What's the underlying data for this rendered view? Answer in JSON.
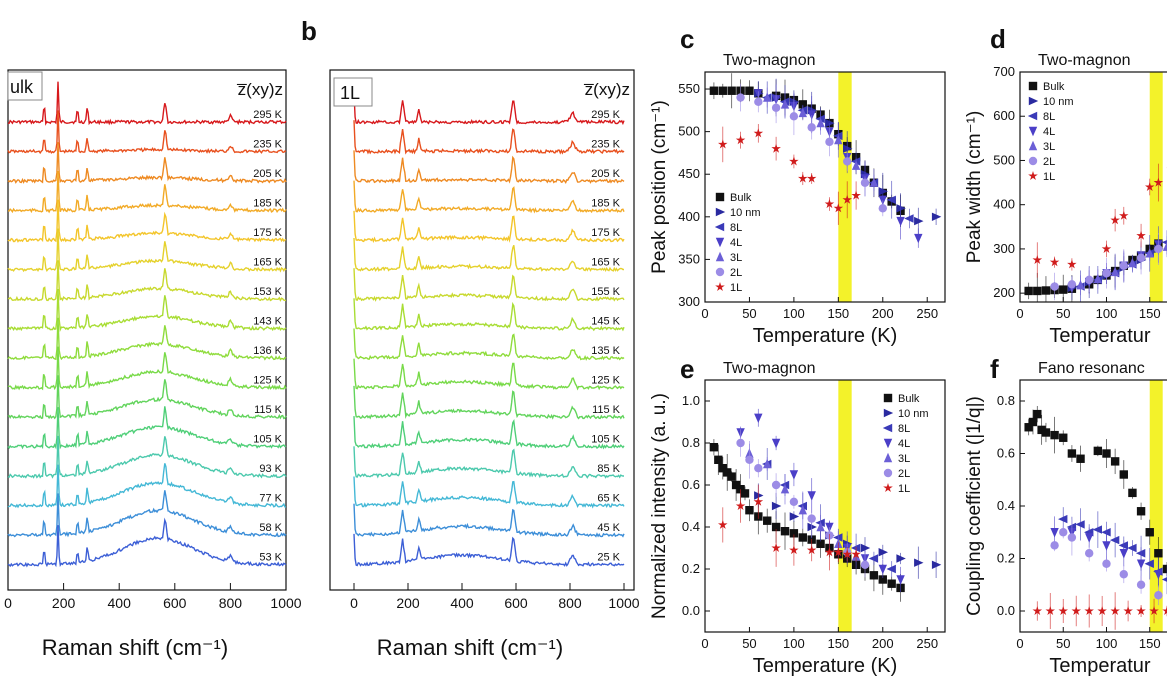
{
  "panels": {
    "a": {
      "letter": "",
      "tag": "ulk",
      "geometry": "z̅(xy)z",
      "temps": [
        "295 K",
        "235 K",
        "205 K",
        "185 K",
        "175 K",
        "165 K",
        "153 K",
        "143 K",
        "136 K",
        "125 K",
        "115 K",
        "105 K",
        "93 K",
        "77 K",
        "58 K",
        "53 K"
      ]
    },
    "b": {
      "letter": "b",
      "tag": "1L",
      "geometry": "z̅(xy)z",
      "temps": [
        "295 K",
        "235 K",
        "205 K",
        "185 K",
        "175 K",
        "165 K",
        "155 K",
        "145 K",
        "135 K",
        "125 K",
        "115 K",
        "105 K",
        "85 K",
        "65 K",
        "45 K",
        "25 K"
      ]
    }
  },
  "spectra_axes": {
    "xlabel": "Raman shift (cm⁻¹)",
    "xticks_a": [
      "0",
      "200",
      "400",
      "600",
      "800",
      "1000"
    ],
    "xticks_b": [
      "0",
      "200",
      "400",
      "600",
      "800",
      "1000"
    ]
  },
  "trace_colors": [
    "#d7191c",
    "#e8501e",
    "#ee8a22",
    "#f2aa26",
    "#f3c52a",
    "#e5d12c",
    "#c8d92e",
    "#a8dd34",
    "#8fdc3c",
    "#78da48",
    "#62d45c",
    "#4fcf78",
    "#4cc9ad",
    "#44b8d6",
    "#3c8ed8",
    "#3c5fd6"
  ],
  "chart_data": [
    {
      "panel": "c",
      "type": "scatter",
      "title": "Two-magnon",
      "xlabel": "Temperature (K)",
      "ylabel": "Peak position (cm⁻¹)",
      "xlim": [
        0,
        270
      ],
      "ylim": [
        300,
        570
      ],
      "xticks": [
        0,
        50,
        100,
        150,
        200,
        250
      ],
      "yticks": [
        300,
        350,
        400,
        450,
        500,
        550
      ],
      "highlight_x": [
        150,
        165
      ],
      "legend_position": "bottom-left",
      "series": [
        {
          "name": "Bulk",
          "marker": "square",
          "color": "#111111",
          "x": [
            10,
            20,
            30,
            40,
            50,
            60,
            80,
            90,
            100,
            110,
            120,
            130,
            140,
            150,
            160,
            170,
            180,
            190,
            200,
            210,
            220
          ],
          "y": [
            548,
            548,
            548,
            548,
            548,
            545,
            542,
            540,
            537,
            532,
            527,
            520,
            510,
            497,
            483,
            470,
            455,
            440,
            428,
            418,
            407
          ]
        },
        {
          "name": "10 nm",
          "marker": "tri-right",
          "color": "#2a2aa0",
          "x": [
            60,
            80,
            100,
            120,
            140,
            160,
            180,
            200,
            220,
            240,
            260
          ],
          "y": [
            545,
            540,
            535,
            525,
            510,
            480,
            450,
            430,
            410,
            395,
            400
          ]
        },
        {
          "name": "8L",
          "marker": "tri-left",
          "color": "#3a3ab8",
          "x": [
            70,
            90,
            110,
            130,
            150,
            170,
            190,
            210,
            230
          ],
          "y": [
            540,
            535,
            525,
            515,
            495,
            465,
            440,
            420,
            398
          ]
        },
        {
          "name": "4L",
          "marker": "tri-down",
          "color": "#4b3fc8",
          "x": [
            60,
            80,
            100,
            120,
            140,
            160,
            180,
            200,
            220,
            240
          ],
          "y": [
            545,
            538,
            530,
            520,
            500,
            470,
            445,
            420,
            395,
            375
          ]
        },
        {
          "name": "3L",
          "marker": "tri-up",
          "color": "#6b5fd6",
          "x": [
            70,
            90,
            110,
            130,
            150,
            170,
            190
          ],
          "y": [
            540,
            532,
            522,
            510,
            490,
            460,
            440
          ]
        },
        {
          "name": "2L",
          "marker": "circle",
          "color": "#9c8ce6",
          "x": [
            40,
            60,
            80,
            100,
            120,
            140,
            160,
            180,
            200
          ],
          "y": [
            540,
            535,
            528,
            518,
            505,
            488,
            465,
            440,
            410
          ]
        },
        {
          "name": "1L",
          "marker": "star",
          "color": "#d01c1c",
          "x": [
            20,
            40,
            60,
            80,
            100,
            110,
            120,
            140,
            150,
            160,
            170
          ],
          "y": [
            485,
            490,
            498,
            480,
            465,
            445,
            445,
            415,
            410,
            420,
            425
          ]
        }
      ]
    },
    {
      "panel": "d",
      "type": "scatter",
      "title": "Two-magnon",
      "xlabel": "Temperatur",
      "ylabel": "Peak width (cm⁻¹)",
      "xlim": [
        0,
        185
      ],
      "ylim": [
        180,
        700
      ],
      "xticks": [
        0,
        50,
        100,
        150
      ],
      "yticks": [
        200,
        300,
        400,
        500,
        600,
        700
      ],
      "highlight_x": [
        150,
        165
      ],
      "legend_position": "top-left",
      "series": [
        {
          "name": "Bulk",
          "marker": "square",
          "color": "#111111",
          "x": [
            10,
            20,
            30,
            40,
            50,
            60,
            80,
            90,
            100,
            110,
            120,
            130,
            140,
            150,
            160
          ],
          "y": [
            205,
            205,
            206,
            207,
            208,
            210,
            220,
            230,
            240,
            250,
            262,
            275,
            285,
            300,
            312
          ]
        },
        {
          "name": "10 nm",
          "marker": "tri-right",
          "color": "#2a2aa0",
          "x": [
            60,
            80,
            100,
            120,
            140,
            160,
            175
          ],
          "y": [
            212,
            225,
            240,
            258,
            275,
            300,
            320
          ]
        },
        {
          "name": "8L",
          "marker": "tri-left",
          "color": "#3a3ab8",
          "x": [
            70,
            90,
            110,
            130,
            150,
            170
          ],
          "y": [
            215,
            230,
            245,
            265,
            290,
            315
          ]
        },
        {
          "name": "4L",
          "marker": "tri-down",
          "color": "#4b3fc8",
          "x": [
            60,
            80,
            100,
            120,
            140,
            160,
            180
          ],
          "y": [
            212,
            225,
            245,
            262,
            285,
            310,
            335
          ]
        },
        {
          "name": "3L",
          "marker": "tri-up",
          "color": "#6b5fd6",
          "x": [
            70,
            90,
            110,
            130,
            150,
            170
          ],
          "y": [
            218,
            232,
            248,
            268,
            290,
            305
          ]
        },
        {
          "name": "2L",
          "marker": "circle",
          "color": "#9c8ce6",
          "x": [
            40,
            60,
            80,
            100,
            120,
            140,
            160,
            180
          ],
          "y": [
            215,
            220,
            230,
            245,
            262,
            280,
            300,
            320
          ]
        },
        {
          "name": "1L",
          "marker": "star",
          "color": "#d01c1c",
          "x": [
            20,
            40,
            60,
            100,
            110,
            120,
            140,
            150,
            160,
            175
          ],
          "y": [
            275,
            270,
            265,
            300,
            365,
            375,
            330,
            440,
            450,
            480
          ]
        }
      ]
    },
    {
      "panel": "e",
      "type": "scatter",
      "title": "Two-magnon",
      "xlabel": "Temperature (K)",
      "ylabel": "Normalized intensity (a. u.)",
      "xlim": [
        0,
        270
      ],
      "ylim": [
        -0.1,
        1.1
      ],
      "xticks": [
        0,
        50,
        100,
        150,
        200,
        250
      ],
      "yticks": [
        0.0,
        0.2,
        0.4,
        0.6,
        0.8,
        1.0
      ],
      "highlight_x": [
        150,
        165
      ],
      "legend_position": "top-right",
      "series": [
        {
          "name": "Bulk",
          "marker": "square",
          "color": "#111111",
          "x": [
            10,
            15,
            20,
            25,
            30,
            35,
            40,
            45,
            50,
            60,
            70,
            80,
            90,
            100,
            110,
            120,
            130,
            140,
            150,
            160,
            170,
            180,
            190,
            200,
            210,
            220
          ],
          "y": [
            0.78,
            0.72,
            0.68,
            0.66,
            0.64,
            0.6,
            0.58,
            0.56,
            0.48,
            0.45,
            0.43,
            0.4,
            0.38,
            0.37,
            0.35,
            0.34,
            0.32,
            0.3,
            0.27,
            0.25,
            0.22,
            0.2,
            0.17,
            0.15,
            0.13,
            0.11
          ]
        },
        {
          "name": "10 nm",
          "marker": "tri-right",
          "color": "#2a2aa0",
          "x": [
            60,
            80,
            100,
            120,
            140,
            160,
            180,
            200,
            220,
            240,
            260
          ],
          "y": [
            0.55,
            0.5,
            0.45,
            0.4,
            0.36,
            0.32,
            0.3,
            0.28,
            0.25,
            0.23,
            0.22
          ]
        },
        {
          "name": "8L",
          "marker": "tri-left",
          "color": "#3a3ab8",
          "x": [
            70,
            90,
            110,
            130,
            150,
            170,
            190,
            210
          ],
          "y": [
            0.7,
            0.6,
            0.5,
            0.42,
            0.35,
            0.3,
            0.25,
            0.2
          ]
        },
        {
          "name": "4L",
          "marker": "tri-down",
          "color": "#4b3fc8",
          "x": [
            40,
            60,
            80,
            100,
            120,
            140,
            160,
            180,
            200,
            220
          ],
          "y": [
            0.85,
            0.92,
            0.8,
            0.65,
            0.55,
            0.4,
            0.3,
            0.25,
            0.2,
            0.15
          ]
        },
        {
          "name": "3L",
          "marker": "tri-up",
          "color": "#6b5fd6",
          "x": [
            50,
            70,
            90,
            110,
            130,
            150,
            170
          ],
          "y": [
            0.75,
            0.7,
            0.58,
            0.48,
            0.4,
            0.32,
            0.26
          ]
        },
        {
          "name": "2L",
          "marker": "circle",
          "color": "#9c8ce6",
          "x": [
            40,
            50,
            60,
            80,
            100,
            120,
            140,
            160,
            180
          ],
          "y": [
            0.8,
            0.72,
            0.68,
            0.6,
            0.52,
            0.44,
            0.36,
            0.28,
            0.22
          ]
        },
        {
          "name": "1L",
          "marker": "star",
          "color": "#d01c1c",
          "x": [
            20,
            40,
            60,
            80,
            100,
            120,
            140,
            150,
            160,
            170
          ],
          "y": [
            0.41,
            0.5,
            0.52,
            0.3,
            0.29,
            0.29,
            0.28,
            0.28,
            0.27,
            0.27
          ]
        }
      ]
    },
    {
      "panel": "f",
      "type": "scatter",
      "title": "Fano resonanc",
      "xlabel": "Temperatur",
      "ylabel": "Coupling coefficient (|1/q|)",
      "xlim": [
        0,
        185
      ],
      "ylim": [
        -0.08,
        0.88
      ],
      "xticks": [
        0,
        50,
        100,
        150
      ],
      "yticks": [
        0.0,
        0.2,
        0.4,
        0.6,
        0.8
      ],
      "highlight_x": [
        150,
        165
      ],
      "legend_position": "none",
      "series": [
        {
          "name": "Bulk",
          "marker": "square",
          "color": "#111111",
          "x": [
            10,
            15,
            20,
            25,
            30,
            40,
            50,
            60,
            70,
            90,
            100,
            110,
            120,
            130,
            140,
            150,
            160,
            170,
            180
          ],
          "y": [
            0.7,
            0.72,
            0.75,
            0.69,
            0.68,
            0.67,
            0.66,
            0.6,
            0.58,
            0.61,
            0.6,
            0.57,
            0.52,
            0.45,
            0.38,
            0.3,
            0.22,
            0.16,
            0.15
          ]
        },
        {
          "name": "8L",
          "marker": "tri-left",
          "color": "#3a3ab8",
          "x": [
            50,
            60,
            70,
            80,
            90,
            100,
            110,
            120,
            130,
            140,
            150,
            160,
            170
          ],
          "y": [
            0.35,
            0.32,
            0.33,
            0.3,
            0.31,
            0.3,
            0.27,
            0.25,
            0.24,
            0.22,
            0.18,
            0.15,
            0.12
          ]
        },
        {
          "name": "4L",
          "marker": "tri-down",
          "color": "#4b3fc8",
          "x": [
            40,
            60,
            80,
            100,
            120,
            140,
            160,
            180
          ],
          "y": [
            0.3,
            0.3,
            0.28,
            0.25,
            0.22,
            0.18,
            0.14,
            0.1
          ]
        },
        {
          "name": "2L",
          "marker": "circle",
          "color": "#9c8ce6",
          "x": [
            40,
            50,
            60,
            80,
            100,
            120,
            140,
            160,
            180
          ],
          "y": [
            0.25,
            0.3,
            0.28,
            0.22,
            0.18,
            0.14,
            0.1,
            0.06,
            0.04
          ]
        },
        {
          "name": "1L",
          "marker": "star",
          "color": "#d01c1c",
          "x": [
            20,
            35,
            50,
            65,
            80,
            95,
            110,
            125,
            140,
            155,
            170,
            180
          ],
          "y": [
            0.0,
            0.0,
            0.0,
            0.0,
            0.0,
            0.0,
            0.0,
            0.0,
            0.0,
            0.0,
            0.0,
            0.0
          ]
        }
      ]
    }
  ]
}
